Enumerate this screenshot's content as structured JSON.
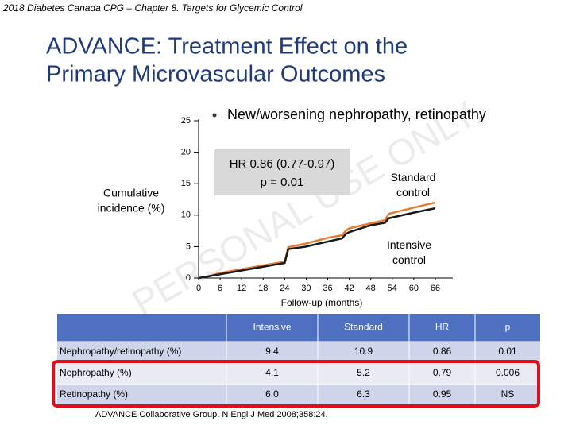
{
  "header": {
    "caption": "2018 Diabetes Canada CPG – Chapter 8.  Targets for Glycemic Control",
    "title_lines": [
      "ADVANCE: Treatment Effect on the",
      "Primary Microvascular Outcomes"
    ]
  },
  "chart_data": {
    "type": "line",
    "title": "New/worsening nephropathy, retinopathy",
    "y_label_lines": [
      "Cumulative",
      "incidence (%)"
    ],
    "x_label": "Follow-up (months)",
    "x": [
      0,
      3,
      6,
      12,
      18,
      22,
      24,
      25,
      30,
      36,
      40,
      41,
      42,
      48,
      52,
      53,
      60,
      66
    ],
    "series": [
      {
        "name": "Standard control",
        "color": "#e97b2c",
        "values": [
          0,
          0.3,
          0.8,
          1.4,
          2.0,
          2.4,
          2.6,
          4.9,
          5.5,
          6.4,
          6.8,
          7.5,
          7.9,
          8.7,
          9.2,
          10.2,
          11.2,
          12.0
        ]
      },
      {
        "name": "Intensive control",
        "color": "#1a1a1a",
        "values": [
          0,
          0.3,
          0.6,
          1.2,
          1.8,
          2.2,
          2.4,
          4.6,
          5.0,
          5.8,
          6.3,
          7.0,
          7.3,
          8.4,
          8.8,
          9.5,
          10.4,
          11.1
        ]
      }
    ],
    "xlim": [
      0,
      70
    ],
    "ylim": [
      0,
      25
    ],
    "xticks": [
      0,
      6,
      12,
      18,
      24,
      30,
      36,
      42,
      48,
      54,
      60,
      66
    ],
    "yticks": [
      0,
      5,
      10,
      15,
      20,
      25
    ],
    "annotation_lines": [
      "HR 0.86 (0.77-0.97)",
      "p = 0.01"
    ],
    "watermark": "PERSONAL USE ONLY"
  },
  "table": {
    "header": [
      "Intensive",
      "Standard",
      "HR",
      "p"
    ],
    "rows": [
      [
        "Nephropathy/retinopathy (%)",
        "9.4",
        "10.9",
        "0.86",
        "0.01"
      ],
      [
        "Nephropathy (%)",
        "4.1",
        "5.2",
        "0.79",
        "0.006"
      ],
      [
        "Retinopathy (%)",
        "6.0",
        "6.3",
        "0.95",
        "NS"
      ]
    ],
    "highlight_rows": [
      1,
      2
    ]
  },
  "citation": "ADVANCE Collaborative Group. N Engl J Med 2008;358:24."
}
